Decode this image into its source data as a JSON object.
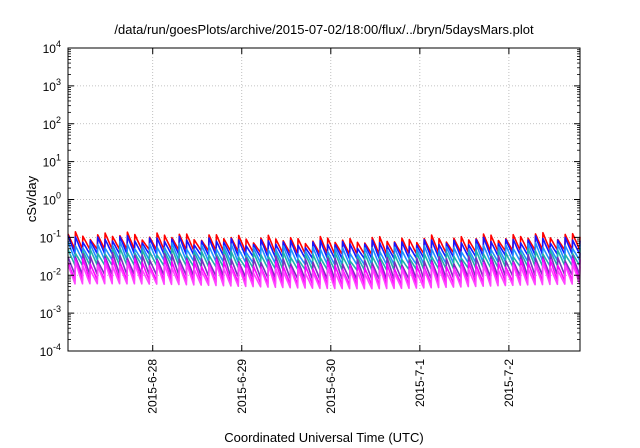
{
  "chart_data": {
    "type": "line",
    "title": "/data/run/goesPlots/archive/2015-07-02/18:00/flux/../bryn/5daysMars.plot",
    "xlabel": "Coordinated Universal Time (UTC)",
    "ylabel": "cSv/day",
    "y_scale": "log",
    "ylim": [
      0.0001,
      10000
    ],
    "y_ticks": [
      {
        "value": 0.0001,
        "base": "10",
        "exp": "-4"
      },
      {
        "value": 0.001,
        "base": "10",
        "exp": "-3"
      },
      {
        "value": 0.01,
        "base": "10",
        "exp": "-2"
      },
      {
        "value": 0.1,
        "base": "10",
        "exp": "-1"
      },
      {
        "value": 1,
        "base": "10",
        "exp": "0"
      },
      {
        "value": 10,
        "base": "10",
        "exp": "1"
      },
      {
        "value": 100,
        "base": "10",
        "exp": "2"
      },
      {
        "value": 1000,
        "base": "10",
        "exp": "3"
      },
      {
        "value": 10000,
        "base": "10",
        "exp": "4"
      }
    ],
    "xlim": [
      "2015-06-27 01:10",
      "2015-07-02 19:10"
    ],
    "x_ticks": [
      "2015-6-28",
      "2015-6-29",
      "2015-6-30",
      "2015-7-1",
      "2015-7-2"
    ],
    "x_tick_times": [
      "2015-06-28 00:00",
      "2015-06-29 00:00",
      "2015-06-30 00:00",
      "2015-07-01 00:00",
      "2015-07-02 00:00"
    ],
    "grid": true,
    "cycle_hours": 2.0,
    "series": [
      {
        "color": "#ff0000",
        "peak": 0.1,
        "trough": 0.042
      },
      {
        "color": "#1515ff",
        "peak": 0.08,
        "trough": 0.032
      },
      {
        "color": "#1e90ff",
        "peak": 0.055,
        "trough": 0.022
      },
      {
        "color": "#20b2aa",
        "peak": 0.038,
        "trough": 0.016
      },
      {
        "color": "#7b2fbe",
        "peak": 0.028,
        "trough": 0.009
      },
      {
        "color": "#ff00ff",
        "peak": 0.021,
        "trough": 0.0065
      },
      {
        "color": "#ff44ff",
        "peak": 0.016,
        "trough": 0.0052
      }
    ]
  }
}
